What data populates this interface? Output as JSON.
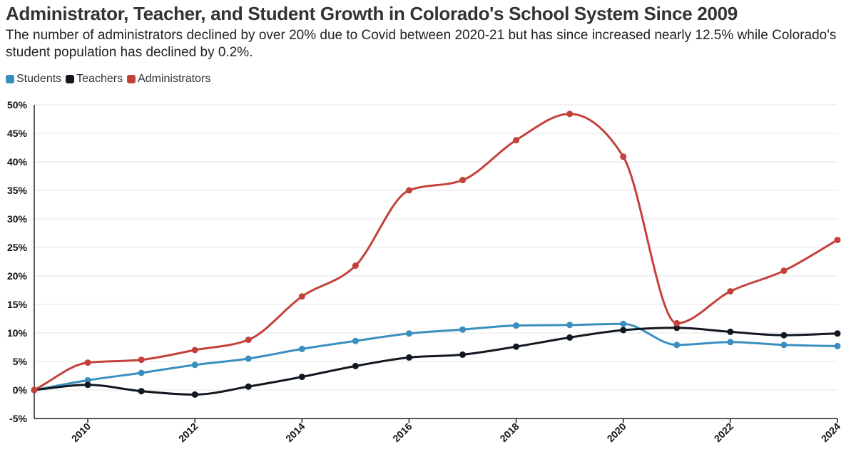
{
  "chart_data": {
    "type": "line",
    "title": "Administrator, Teacher, and Student Growth in Colorado's School System Since 2009",
    "subtitle": "The number of administrators declined by over 20% due to Covid between 2020-21 but has since increased nearly 12.5% while Colorado's student population has declined by 0.2%.",
    "xlabel": "",
    "ylabel": "",
    "x": [
      2009,
      2010,
      2011,
      2012,
      2013,
      2014,
      2015,
      2016,
      2017,
      2018,
      2019,
      2020,
      2021,
      2022,
      2023,
      2024
    ],
    "x_tick_labels": [
      "2010",
      "2012",
      "2014",
      "2016",
      "2018",
      "2020",
      "2022",
      "2024"
    ],
    "y_tick_labels": [
      "50%",
      "45%",
      "40%",
      "35%",
      "30%",
      "25%",
      "20%",
      "15%",
      "10%",
      "5%",
      "0%",
      "-5%"
    ],
    "ylim": [
      -5,
      50
    ],
    "xlim": [
      2009,
      2024
    ],
    "grid": true,
    "legend_position": "top-left",
    "series": [
      {
        "name": "Students",
        "color": "#3a8fc0",
        "values": [
          0,
          1.7,
          3.0,
          4.4,
          5.5,
          7.2,
          8.6,
          9.9,
          10.6,
          11.3,
          11.4,
          11.6,
          7.9,
          8.4,
          7.9,
          7.7
        ]
      },
      {
        "name": "Teachers",
        "color": "#111820",
        "values": [
          0,
          0.9,
          -0.2,
          -0.8,
          0.6,
          2.3,
          4.2,
          5.7,
          6.2,
          7.6,
          9.2,
          10.5,
          10.9,
          10.2,
          9.6,
          9.9
        ]
      },
      {
        "name": "Administrators",
        "color": "#c4413b",
        "values": [
          0,
          4.8,
          5.3,
          7.0,
          8.8,
          16.4,
          21.8,
          35.0,
          36.8,
          43.8,
          48.4,
          40.9,
          11.7,
          17.3,
          20.9,
          26.3
        ]
      }
    ]
  }
}
